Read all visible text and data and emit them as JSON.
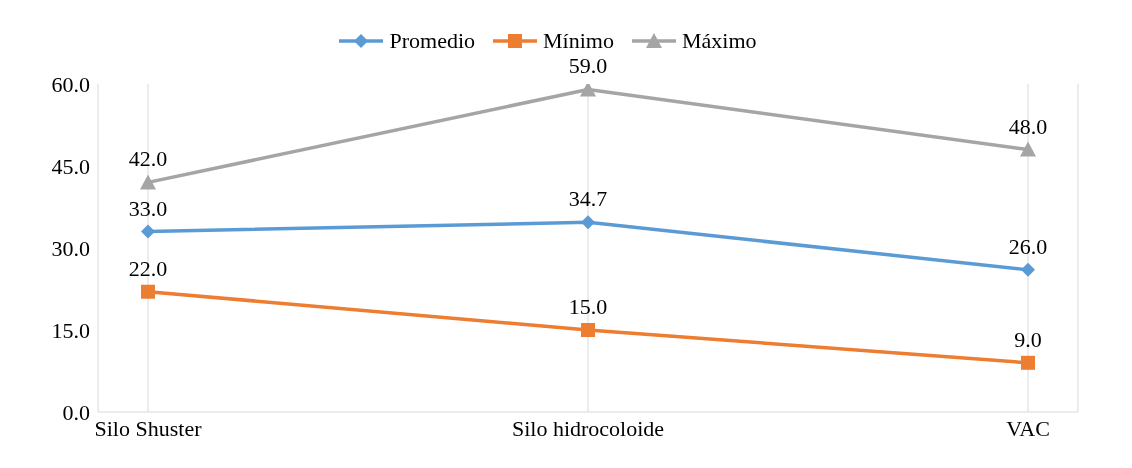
{
  "chart_data": {
    "type": "line",
    "categories": [
      "Silo Shuster",
      "Silo hidrocoloide",
      "VAC"
    ],
    "series": [
      {
        "name": "Promedio",
        "color": "#5b9bd5",
        "marker": "diamond",
        "values": [
          33.0,
          34.7,
          26.0
        ],
        "value_labels": [
          "33.0",
          "34.7",
          "26.0"
        ]
      },
      {
        "name": "Mínimo",
        "color": "#ed7d31",
        "marker": "square",
        "values": [
          22.0,
          15.0,
          9.0
        ],
        "value_labels": [
          "22.0",
          "15.0",
          "9.0"
        ]
      },
      {
        "name": "Máximo",
        "color": "#a5a5a5",
        "marker": "triangle",
        "values": [
          42.0,
          59.0,
          48.0
        ],
        "value_labels": [
          "42.0",
          "59.0",
          "48.0"
        ]
      }
    ],
    "ylim": [
      0,
      60
    ],
    "yticks": [
      {
        "value": 0,
        "label": "0.0"
      },
      {
        "value": 15,
        "label": "15.0"
      },
      {
        "value": 30,
        "label": "30.0"
      },
      {
        "value": 45,
        "label": "45.0"
      },
      {
        "value": 60,
        "label": "60.0"
      }
    ],
    "grid": "x",
    "legend": "top",
    "line_style": "solid"
  }
}
